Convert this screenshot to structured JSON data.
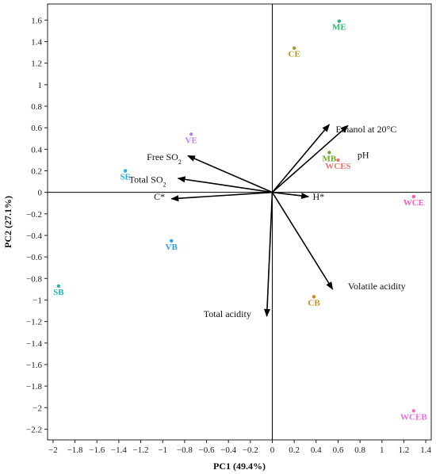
{
  "chart_data": {
    "type": "scatter",
    "subtype": "pca-biplot",
    "xlabel": "PC1 (49.4%)",
    "ylabel": "PC2 (27.1%)",
    "xlim": [
      -2.05,
      1.45
    ],
    "ylim": [
      -2.3,
      1.75
    ],
    "xticks": [
      -2,
      -1.8,
      -1.6,
      -1.4,
      -1.2,
      -1,
      -0.8,
      -0.6,
      -0.4,
      -0.2,
      0,
      0.2,
      0.4,
      0.6,
      0.8,
      1,
      1.2,
      1.4
    ],
    "xtick_labels": [
      "−2",
      "−1.8",
      "−1.6",
      "−1.4",
      "−1.2",
      "−1",
      "−0.8",
      "−0.6",
      "−0.4",
      "−0.2",
      "0",
      "0.2",
      "0.4",
      "0.6",
      "0.8",
      "1",
      "1.2",
      "1.4"
    ],
    "yticks": [
      1.6,
      1.4,
      1.2,
      1,
      0.8,
      0.6,
      0.4,
      0.2,
      0,
      -0.2,
      -0.4,
      -0.6,
      -0.8,
      -1,
      -1.2,
      -1.4,
      -1.6,
      -1.8,
      -2,
      -2.2
    ],
    "ytick_labels": [
      "1.6",
      "1.4",
      "1.2",
      "1",
      "0.8",
      "0.6",
      "0.4",
      "0.2",
      "0",
      "−0.2",
      "−0.4",
      "−0.6",
      "−0.8",
      "−1",
      "−1.2",
      "−1.4",
      "−1.6",
      "−1.8",
      "−2",
      "−2.2"
    ],
    "grid": false,
    "points": [
      {
        "label": "ME",
        "x": 0.61,
        "y": 1.59,
        "color": "#2bb673"
      },
      {
        "label": "CE",
        "x": 0.2,
        "y": 1.34,
        "color": "#a99e17"
      },
      {
        "label": "VE",
        "x": -0.74,
        "y": 0.54,
        "color": "#b784e6"
      },
      {
        "label": "MB",
        "x": 0.52,
        "y": 0.37,
        "color": "#6fae28"
      },
      {
        "label": "WCES",
        "x": 0.6,
        "y": 0.3,
        "color": "#ee7168"
      },
      {
        "label": "SE",
        "x": -1.34,
        "y": 0.2,
        "color": "#25b0d2"
      },
      {
        "label": "WCE",
        "x": 1.29,
        "y": -0.04,
        "color": "#f35bc3"
      },
      {
        "label": "VB",
        "x": -0.92,
        "y": -0.45,
        "color": "#28a4de"
      },
      {
        "label": "SB",
        "x": -1.95,
        "y": -0.87,
        "color": "#1cb7b4"
      },
      {
        "label": "CB",
        "x": 0.38,
        "y": -0.97,
        "color": "#cf8b18"
      },
      {
        "label": "WCEB",
        "x": 1.29,
        "y": -2.03,
        "color": "#e86bd8"
      }
    ],
    "vectors": [
      {
        "label": "Ethanol at 20°C",
        "x": 0.52,
        "y": 0.63
      },
      {
        "label": "pH",
        "x": 0.69,
        "y": 0.62
      },
      {
        "label": "Free SO",
        "sub": "2",
        "x": -0.77,
        "y": 0.34
      },
      {
        "label": "Total SO",
        "sub": "2",
        "x": -0.86,
        "y": 0.13
      },
      {
        "label": "C*",
        "x": -0.92,
        "y": -0.06
      },
      {
        "label": "H*",
        "x": 0.33,
        "y": -0.04
      },
      {
        "label": "Volatile acidity",
        "x": 0.55,
        "y": -0.9
      },
      {
        "label": "Total acidity",
        "x": -0.05,
        "y": -1.15
      }
    ]
  }
}
